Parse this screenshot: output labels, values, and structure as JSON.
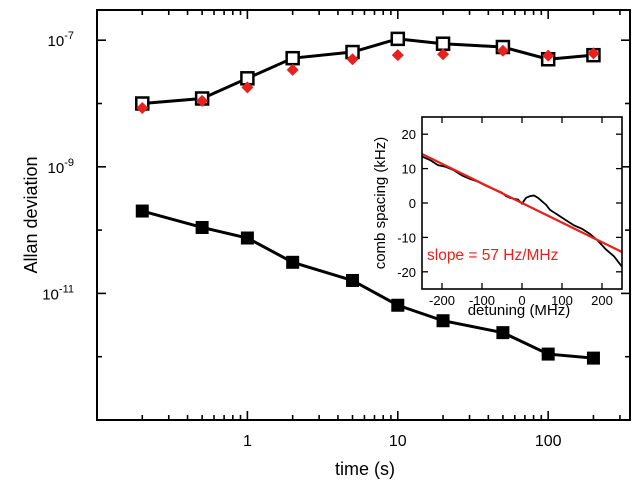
{
  "chart_data": [
    {
      "type": "scatter",
      "xlabel": "time (s)",
      "ylabel": "Allan deviation",
      "x_scale": "log",
      "y_scale": "log",
      "xlim": [
        0.1,
        350
      ],
      "ylim": [
        1e-13,
        3e-07
      ],
      "x_ticks": [
        {
          "value": 1,
          "label": "1"
        },
        {
          "value": 10,
          "label": "10"
        },
        {
          "value": 100,
          "label": "100"
        }
      ],
      "y_ticks": [
        {
          "value": 1e-07,
          "base": "10",
          "exp": "-7"
        },
        {
          "value": 1e-09,
          "base": "10",
          "exp": "-9"
        },
        {
          "value": 1e-11,
          "base": "10",
          "exp": "-11"
        }
      ],
      "series": [
        {
          "marker": "open-square",
          "line": true,
          "color": "#000000",
          "x": [
            0.2,
            0.5,
            1,
            2,
            5,
            10,
            20,
            50,
            100,
            200
          ],
          "values": [
            1e-08,
            1.2e-08,
            2.5e-08,
            5.2e-08,
            6.5e-08,
            1.05e-07,
            8.8e-08,
            7.8e-08,
            5e-08,
            5.8e-08
          ]
        },
        {
          "marker": "filled-diamond",
          "line": false,
          "color": "#e8201e",
          "x": [
            0.2,
            0.5,
            1,
            2,
            5,
            10,
            20,
            50,
            100,
            200
          ],
          "values": [
            8.5e-09,
            1.1e-08,
            1.8e-08,
            3.4e-08,
            5e-08,
            5.8e-08,
            6e-08,
            6.8e-08,
            5.7e-08,
            6.2e-08
          ]
        },
        {
          "marker": "filled-square",
          "line": true,
          "color": "#000000",
          "x": [
            0.2,
            0.5,
            1,
            2,
            5,
            10,
            20,
            50,
            100,
            200
          ],
          "values": [
            2e-10,
            1.1e-10,
            7.5e-11,
            3.1e-11,
            1.6e-11,
            6.5e-12,
            3.7e-12,
            2.4e-12,
            1.1e-12,
            9.5e-13
          ]
        }
      ]
    },
    {
      "type": "line",
      "inset": true,
      "xlabel": "detuning (MHz)",
      "ylabel": "comb spacing (kHz)",
      "xlim": [
        -250,
        250
      ],
      "ylim": [
        -25,
        25
      ],
      "x_ticks": [
        -200,
        -100,
        0,
        100,
        200
      ],
      "y_ticks": [
        20,
        10,
        0,
        -10,
        -20
      ],
      "annotation": "slope = 57 Hz/MHz",
      "series": [
        {
          "kind": "measured",
          "color": "#000000",
          "x": [
            -250,
            -230,
            -210,
            -190,
            -170,
            -150,
            -130,
            -110,
            -90,
            -70,
            -50,
            -40,
            -30,
            -10,
            0,
            10,
            20,
            30,
            40,
            50,
            60,
            70,
            90,
            110,
            130,
            150,
            170,
            190,
            210,
            230,
            250
          ],
          "values": [
            13.5,
            12.5,
            11.0,
            10.5,
            9.5,
            8.0,
            7.0,
            6.2,
            5.0,
            4.0,
            3.0,
            2.0,
            1.5,
            1.0,
            -0.2,
            1.5,
            2.0,
            2.2,
            1.5,
            0.5,
            -0.5,
            -2.0,
            -3.5,
            -5.0,
            -6.5,
            -7.5,
            -9.0,
            -11.0,
            -13.5,
            -15.5,
            -18.5
          ]
        },
        {
          "kind": "fit",
          "color": "#e8201e",
          "x": [
            -250,
            250
          ],
          "values": [
            14.25,
            -14.25
          ]
        }
      ]
    }
  ]
}
